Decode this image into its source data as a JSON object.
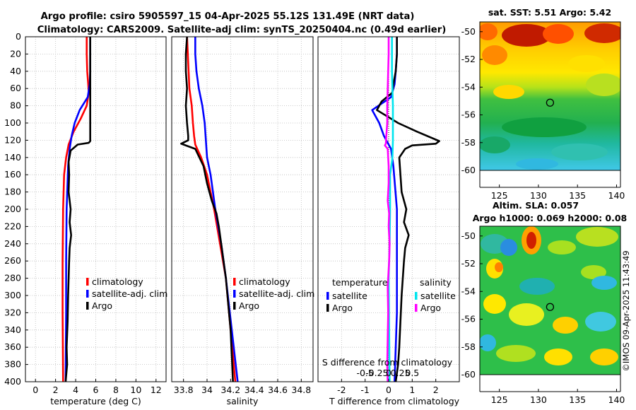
{
  "title": {
    "line1": "Argo profile: csiro 5905597_15 04-Apr-2025 55.12S 131.49E (NRT data)",
    "line2": "Climatology: CARS2009. Satellite-adj clim: synTS_20250404.nc (0.49d earlier)"
  },
  "credit": "©IMOS 09-Apr-2025 11:43:49",
  "colors": {
    "climatology": "#ff0000",
    "satellite": "#0000ff",
    "argo": "#000000",
    "sal_satellite": "#00e5ee",
    "sal_argo": "#ff00ff"
  },
  "chart_data": [
    {
      "type": "line",
      "panel": "temperature",
      "xlabel": "temperature (deg C)",
      "ylabel": "",
      "xlim": [
        -1,
        13
      ],
      "ylim": [
        400,
        0
      ],
      "xticks": [
        "0",
        "2",
        "4",
        "6",
        "8",
        "10",
        "12"
      ],
      "xtick_values": [
        0,
        2,
        4,
        6,
        8,
        10,
        12
      ],
      "yticks": [
        "0",
        "20",
        "40",
        "60",
        "80",
        "100",
        "120",
        "140",
        "160",
        "180",
        "200",
        "220",
        "240",
        "260",
        "280",
        "300",
        "320",
        "340",
        "360",
        "380",
        "400"
      ],
      "ytick_values": [
        0,
        20,
        40,
        60,
        80,
        100,
        120,
        140,
        160,
        180,
        200,
        220,
        240,
        260,
        280,
        300,
        320,
        340,
        360,
        380,
        400
      ],
      "grid": true,
      "legend": {
        "position": "bottom-right",
        "items": [
          "climatology",
          "satellite-adj. clim",
          "Argo"
        ]
      },
      "series": [
        {
          "name": "climatology",
          "color_key": "climatology",
          "points": [
            [
              5.1,
              0
            ],
            [
              5.1,
              20
            ],
            [
              5.15,
              40
            ],
            [
              5.25,
              55
            ],
            [
              5.3,
              65
            ],
            [
              5.1,
              80
            ],
            [
              4.5,
              95
            ],
            [
              3.8,
              110
            ],
            [
              3.3,
              125
            ],
            [
              3.05,
              140
            ],
            [
              2.85,
              160
            ],
            [
              2.75,
              200
            ],
            [
              2.7,
              260
            ],
            [
              2.7,
              320
            ],
            [
              2.75,
              400
            ]
          ]
        },
        {
          "name": "satellite-adj. clim",
          "color_key": "satellite",
          "points": [
            [
              5.45,
              0
            ],
            [
              5.45,
              20
            ],
            [
              5.45,
              40
            ],
            [
              5.4,
              55
            ],
            [
              5.2,
              70
            ],
            [
              4.4,
              85
            ],
            [
              3.9,
              100
            ],
            [
              3.6,
              115
            ],
            [
              3.4,
              130
            ],
            [
              3.25,
              150
            ],
            [
              3.1,
              200
            ],
            [
              3.05,
              260
            ],
            [
              3.05,
              320
            ],
            [
              3.0,
              400
            ]
          ]
        },
        {
          "name": "Argo",
          "color_key": "argo",
          "points": [
            [
              5.45,
              0
            ],
            [
              5.45,
              20
            ],
            [
              5.45,
              60
            ],
            [
              5.45,
              100
            ],
            [
              5.45,
              121
            ],
            [
              5.3,
              123
            ],
            [
              4.2,
              125
            ],
            [
              3.5,
              132
            ],
            [
              3.3,
              145
            ],
            [
              3.35,
              160
            ],
            [
              3.3,
              180
            ],
            [
              3.5,
              200
            ],
            [
              3.4,
              215
            ],
            [
              3.55,
              230
            ],
            [
              3.4,
              245
            ],
            [
              3.35,
              260
            ],
            [
              3.3,
              280
            ],
            [
              3.25,
              300
            ],
            [
              3.2,
              330
            ],
            [
              3.1,
              360
            ],
            [
              3.15,
              380
            ],
            [
              3.0,
              400
            ]
          ]
        }
      ]
    },
    {
      "type": "line",
      "panel": "salinity",
      "xlabel": "salinity",
      "xlim": [
        33.7,
        34.9
      ],
      "ylim": [
        400,
        0
      ],
      "xticks": [
        "33.8",
        "34",
        "34.2",
        "34.4",
        "34.6",
        "34.8"
      ],
      "xtick_values": [
        33.8,
        34.0,
        34.2,
        34.4,
        34.6,
        34.8
      ],
      "grid": true,
      "legend": {
        "position": "bottom-right",
        "items": [
          "climatology",
          "satellite-adj. clim",
          "Argo"
        ]
      },
      "series": [
        {
          "name": "climatology",
          "color_key": "climatology",
          "points": [
            [
              33.83,
              0
            ],
            [
              33.84,
              30
            ],
            [
              33.85,
              60
            ],
            [
              33.87,
              80
            ],
            [
              33.88,
              100
            ],
            [
              33.89,
              115
            ],
            [
              33.9,
              125
            ],
            [
              33.95,
              140
            ],
            [
              34.0,
              160
            ],
            [
              34.06,
              200
            ],
            [
              34.11,
              240
            ],
            [
              34.16,
              280
            ],
            [
              34.2,
              340
            ],
            [
              34.24,
              400
            ]
          ]
        },
        {
          "name": "satellite-adj. clim",
          "color_key": "satellite",
          "points": [
            [
              33.9,
              0
            ],
            [
              33.9,
              20
            ],
            [
              33.91,
              40
            ],
            [
              33.93,
              60
            ],
            [
              33.96,
              80
            ],
            [
              33.98,
              100
            ],
            [
              33.99,
              120
            ],
            [
              34.0,
              140
            ],
            [
              34.03,
              160
            ],
            [
              34.07,
              200
            ],
            [
              34.12,
              240
            ],
            [
              34.16,
              280
            ],
            [
              34.21,
              340
            ],
            [
              34.26,
              400
            ]
          ]
        },
        {
          "name": "Argo",
          "color_key": "argo",
          "points": [
            [
              33.83,
              0
            ],
            [
              33.82,
              20
            ],
            [
              33.82,
              40
            ],
            [
              33.83,
              60
            ],
            [
              33.82,
              80
            ],
            [
              33.83,
              100
            ],
            [
              33.84,
              115
            ],
            [
              33.84,
              120
            ],
            [
              33.78,
              124
            ],
            [
              33.82,
              126
            ],
            [
              33.9,
              130
            ],
            [
              33.97,
              150
            ],
            [
              34.0,
              170
            ],
            [
              34.04,
              190
            ],
            [
              34.08,
              205
            ],
            [
              34.1,
              220
            ],
            [
              34.12,
              240
            ],
            [
              34.14,
              260
            ],
            [
              34.16,
              280
            ],
            [
              34.18,
              310
            ],
            [
              34.2,
              340
            ],
            [
              34.21,
              370
            ],
            [
              34.22,
              400
            ]
          ]
        }
      ]
    },
    {
      "type": "line",
      "panel": "difference",
      "xlabel": "T difference from climatology",
      "top_axis_label": "S difference from climatology",
      "xlim": [
        -3,
        3
      ],
      "ylim": [
        400,
        0
      ],
      "xticks": [
        "-2",
        "-1",
        "0",
        "1",
        "2"
      ],
      "xtick_values": [
        -2,
        -1,
        0,
        1,
        2
      ],
      "top_xticks": [
        "-0.5",
        "-0.25",
        "0",
        "0.25",
        "0.5"
      ],
      "top_xtick_values": [
        -0.5,
        -0.25,
        0,
        0.25,
        0.5
      ],
      "grid": true,
      "legend": {
        "position": "bottom",
        "temperature_header": "temperature",
        "salinity_header": "salinity",
        "items": [
          "satellite",
          "Argo",
          "satellite",
          "Argo"
        ]
      },
      "series": [
        {
          "name": "T satellite",
          "color_key": "satellite",
          "scale": "T",
          "points": [
            [
              0.35,
              0
            ],
            [
              0.35,
              20
            ],
            [
              0.3,
              40
            ],
            [
              0.25,
              55
            ],
            [
              0.1,
              70
            ],
            [
              -0.7,
              85
            ],
            [
              -0.4,
              100
            ],
            [
              -0.2,
              115
            ],
            [
              0.1,
              130
            ],
            [
              0.2,
              150
            ],
            [
              0.35,
              200
            ],
            [
              0.35,
              260
            ],
            [
              0.35,
              320
            ],
            [
              0.25,
              400
            ]
          ]
        },
        {
          "name": "T Argo",
          "color_key": "argo",
          "scale": "T",
          "points": [
            [
              0.35,
              0
            ],
            [
              0.35,
              20
            ],
            [
              0.3,
              40
            ],
            [
              0.2,
              55
            ],
            [
              0.15,
              65
            ],
            [
              -0.3,
              75
            ],
            [
              -0.5,
              85
            ],
            [
              0.4,
              100
            ],
            [
              1.2,
              110
            ],
            [
              2.15,
              121
            ],
            [
              2.0,
              124
            ],
            [
              1.0,
              126
            ],
            [
              0.7,
              130
            ],
            [
              0.45,
              140
            ],
            [
              0.5,
              160
            ],
            [
              0.55,
              180
            ],
            [
              0.75,
              200
            ],
            [
              0.65,
              215
            ],
            [
              0.85,
              230
            ],
            [
              0.7,
              245
            ],
            [
              0.65,
              260
            ],
            [
              0.6,
              280
            ],
            [
              0.55,
              300
            ],
            [
              0.5,
              330
            ],
            [
              0.45,
              360
            ],
            [
              0.4,
              380
            ],
            [
              0.3,
              400
            ]
          ]
        },
        {
          "name": "S satellite",
          "color_key": "sal_satellite",
          "scale": "S",
          "points": [
            [
              0.07,
              0
            ],
            [
              0.07,
              20
            ],
            [
              0.07,
              40
            ],
            [
              0.08,
              60
            ],
            [
              0.09,
              80
            ],
            [
              0.09,
              100
            ],
            [
              0.09,
              120
            ],
            [
              0.08,
              140
            ],
            [
              0.03,
              160
            ],
            [
              0.03,
              200
            ],
            [
              0.02,
              240
            ],
            [
              0.0,
              280
            ],
            [
              0.01,
              340
            ],
            [
              0.02,
              400
            ]
          ]
        },
        {
          "name": "S Argo",
          "color_key": "sal_argo",
          "scale": "S",
          "points": [
            [
              0.0,
              0
            ],
            [
              0.0,
              20
            ],
            [
              -0.01,
              40
            ],
            [
              -0.02,
              60
            ],
            [
              -0.03,
              80
            ],
            [
              -0.03,
              100
            ],
            [
              -0.05,
              115
            ],
            [
              -0.06,
              124
            ],
            [
              -0.08,
              126
            ],
            [
              -0.02,
              130
            ],
            [
              0.0,
              150
            ],
            [
              0.0,
              170
            ],
            [
              -0.02,
              190
            ],
            [
              0.01,
              205
            ],
            [
              0.0,
              220
            ],
            [
              0.02,
              240
            ],
            [
              0.01,
              260
            ],
            [
              -0.02,
              290
            ],
            [
              -0.01,
              320
            ],
            [
              -0.02,
              350
            ],
            [
              -0.03,
              380
            ],
            [
              -0.02,
              400
            ]
          ]
        }
      ]
    },
    {
      "type": "heatmap",
      "panel": "sst-map",
      "title": "sat. SST: 5.51 Argo: 5.42",
      "xlim": [
        122.5,
        140.5
      ],
      "ylim": [
        -60,
        -49.5
      ],
      "xticks": [
        "125",
        "130",
        "135",
        "140"
      ],
      "xtick_values": [
        125,
        130,
        135,
        140
      ],
      "yticks": [
        "-50",
        "-52",
        "-54",
        "-56",
        "-58",
        "-60"
      ],
      "ytick_values": [
        -50,
        -52,
        -54,
        -56,
        -58,
        -60
      ],
      "argo_position": {
        "lon": 131.49,
        "lat": -55.12
      }
    },
    {
      "type": "heatmap",
      "panel": "sla-map",
      "title_line1": "Altim. SLA: 0.057",
      "title_line2": "Argo h1000: 0.069 h2000: 0.08",
      "xlim": [
        122.5,
        140.5
      ],
      "ylim": [
        -60,
        -49.5
      ],
      "xticks": [
        "125",
        "130",
        "135",
        "140"
      ],
      "xtick_values": [
        125,
        130,
        135,
        140
      ],
      "yticks": [
        "-50",
        "-52",
        "-54",
        "-56",
        "-58",
        "-60"
      ],
      "ytick_values": [
        -50,
        -52,
        -54,
        -56,
        -58,
        -60
      ],
      "argo_position": {
        "lon": 131.49,
        "lat": -55.12
      }
    }
  ]
}
